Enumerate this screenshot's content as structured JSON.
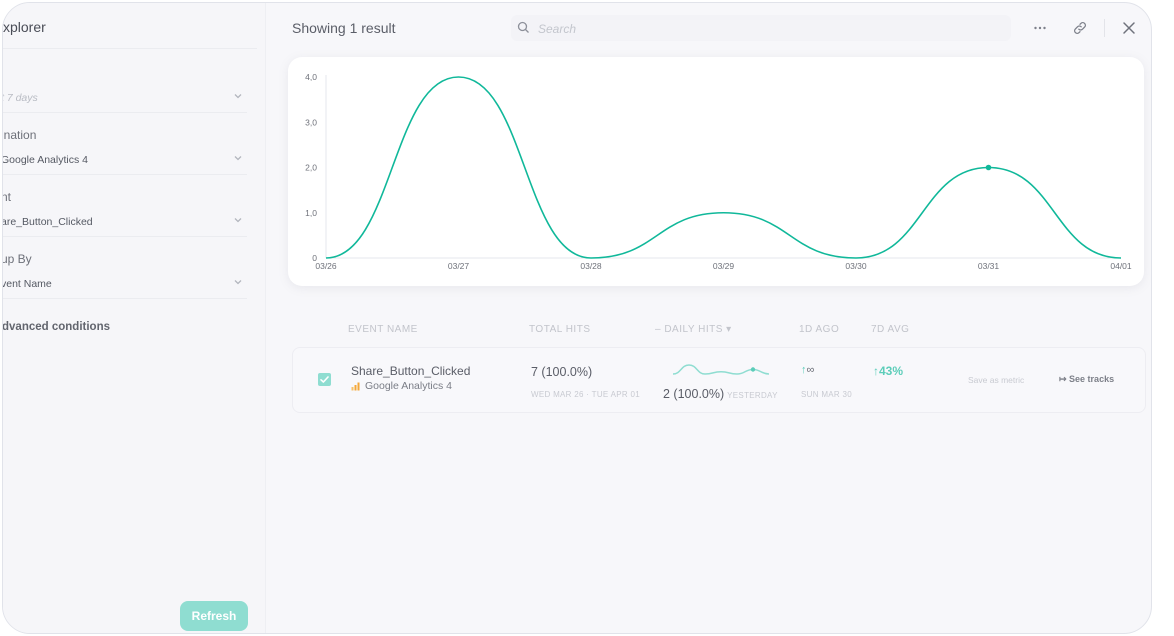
{
  "sidebar": {
    "title": "xplorer",
    "filters": [
      {
        "label": "",
        "value": "t 7 days",
        "placeholder": true
      },
      {
        "label": "ination",
        "value": "Google Analytics 4",
        "placeholder": false
      },
      {
        "label": "nt",
        "value": "are_Button_Clicked",
        "placeholder": false
      },
      {
        "label": "up By",
        "value": "vent Name",
        "placeholder": false
      }
    ],
    "advanced_label": "dvanced conditions",
    "refresh_label": "Refresh"
  },
  "header": {
    "showing": "Showing 1 result",
    "search_placeholder": "Search",
    "more_icon": "more-horizontal-icon",
    "link_icon": "link-icon",
    "close_icon": "close-icon"
  },
  "colors": {
    "accent": "#10b89a",
    "accent_light": "#8fddd1"
  },
  "chart_data": {
    "type": "line",
    "smooth": true,
    "x": [
      "03/26",
      "03/27",
      "03/28",
      "03/29",
      "03/30",
      "03/31",
      "04/01"
    ],
    "series": [
      {
        "name": "Share_Button_Clicked",
        "values": [
          0,
          4,
          0,
          1,
          0,
          2,
          0
        ]
      }
    ],
    "y_ticks": [
      "0",
      "1,0",
      "2,0",
      "3,0",
      "4,0"
    ],
    "ylim": [
      0,
      4
    ],
    "highlight_index": 5
  },
  "table": {
    "headers": {
      "event_name": "EVENT NAME",
      "total_hits": "TOTAL HITS",
      "daily_hits": "– DAILY HITS ▾",
      "ago": "1D AGO",
      "avg": "7D AVG"
    },
    "rows": [
      {
        "checked": true,
        "event_name": "Share_Button_Clicked",
        "source": "Google Analytics 4",
        "total_hits": "7 (100.0%)",
        "range": "WED MAR 26 · TUE APR 01",
        "daily_hits": "2 (100.0%)",
        "daily_label": "YESTERDAY",
        "ago_value": "∞",
        "ago_date": "SUN MAR 30",
        "avg_value": "43%",
        "save_label": "Save as metric",
        "see_tracks_label": "See tracks"
      }
    ]
  }
}
